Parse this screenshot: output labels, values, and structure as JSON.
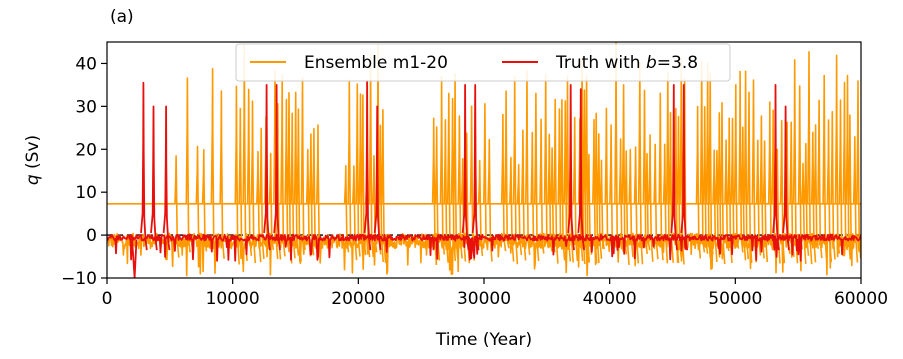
{
  "chart_data": {
    "type": "line",
    "panel_label": "(a)",
    "xlabel": "Time (Year)",
    "ylabel_italic": "q",
    "ylabel_unit": " (Sv)",
    "xlim": [
      0,
      60000
    ],
    "ylim": [
      -10,
      45
    ],
    "xticks": [
      0,
      10000,
      20000,
      30000,
      40000,
      50000,
      60000
    ],
    "yticks": [
      -10,
      0,
      10,
      20,
      30,
      40
    ],
    "reference_line": {
      "y": 0,
      "style": "dashed",
      "color": "#000000"
    },
    "legend_placement": "top-center",
    "series": [
      {
        "name": "Ensemble m1-20",
        "color": "#ff9900",
        "baseline_upper": 7.3,
        "baseline_lower": -1.0,
        "active_intervals": [
          [
            10300,
            17000
          ],
          [
            19000,
            22000
          ],
          [
            26000,
            30500
          ],
          [
            31500,
            46000
          ],
          [
            47000,
            60000
          ]
        ],
        "early_spikes": [
          5500,
          6400,
          7200,
          7700,
          8400,
          9100
        ],
        "spike_peak_range": [
          16,
          39
        ]
      },
      {
        "name": "Truth with ",
        "name_italic": "b",
        "name_suffix": "=3.8",
        "color": "#e8100c",
        "spikes": [
          {
            "x": 2900,
            "y": 35.5
          },
          {
            "x": 3700,
            "y": 30
          },
          {
            "x": 4700,
            "y": 30
          },
          {
            "x": 12700,
            "y": 35
          },
          {
            "x": 13500,
            "y": 35
          },
          {
            "x": 20700,
            "y": 36
          },
          {
            "x": 21500,
            "y": 30
          },
          {
            "x": 28500,
            "y": 35
          },
          {
            "x": 29300,
            "y": 35
          },
          {
            "x": 36900,
            "y": 35
          },
          {
            "x": 37700,
            "y": 34
          },
          {
            "x": 45100,
            "y": 35
          },
          {
            "x": 45900,
            "y": 35
          },
          {
            "x": 53200,
            "y": 35
          },
          {
            "x": 54000,
            "y": 30
          }
        ],
        "min_value": -10
      }
    ]
  }
}
